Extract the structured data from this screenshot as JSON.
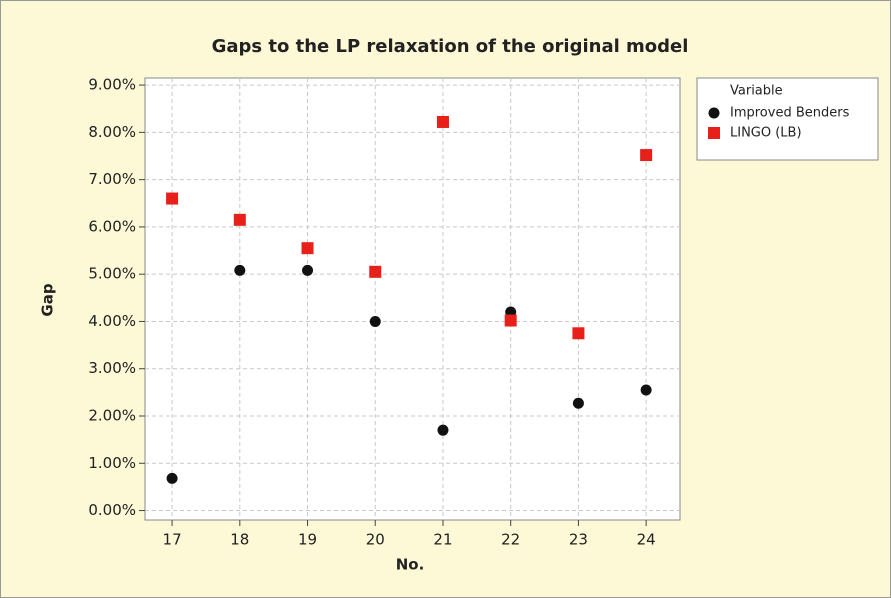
{
  "chart_data": {
    "type": "scatter",
    "title": "Gaps to the LP relaxation of the original model",
    "x_label": "No.",
    "y_label": "Gap",
    "legend_title": "Variable",
    "legend": "top-right-outside",
    "grid": true,
    "x": [
      17,
      18,
      19,
      20,
      21,
      22,
      23,
      24
    ],
    "series": [
      {
        "name": "Improved Benders",
        "color": "#111111",
        "marker": "circle",
        "values": [
          0.68,
          5.08,
          5.08,
          4.0,
          1.7,
          4.2,
          2.27,
          2.55
        ]
      },
      {
        "name": "LINGO (LB)",
        "color": "#e8201a",
        "marker": "square",
        "values": [
          6.6,
          6.15,
          5.55,
          5.05,
          8.22,
          4.02,
          3.75,
          7.52
        ]
      }
    ],
    "xlim": [
      16.6,
      24.5
    ],
    "xticks": [
      17,
      18,
      19,
      20,
      21,
      22,
      23,
      24
    ],
    "ylim": [
      -0.2,
      9.15
    ],
    "yticks": [
      {
        "value": 0,
        "label": "0.00%"
      },
      {
        "value": 1,
        "label": "1.00%"
      },
      {
        "value": 2,
        "label": "2.00%"
      },
      {
        "value": 3,
        "label": "3.00%"
      },
      {
        "value": 4,
        "label": "4.00%"
      },
      {
        "value": 5,
        "label": "5.00%"
      },
      {
        "value": 6,
        "label": "6.00%"
      },
      {
        "value": 7,
        "label": "7.00%"
      },
      {
        "value": 8,
        "label": "8.00%"
      },
      {
        "value": 9,
        "label": "9.00%"
      }
    ]
  }
}
